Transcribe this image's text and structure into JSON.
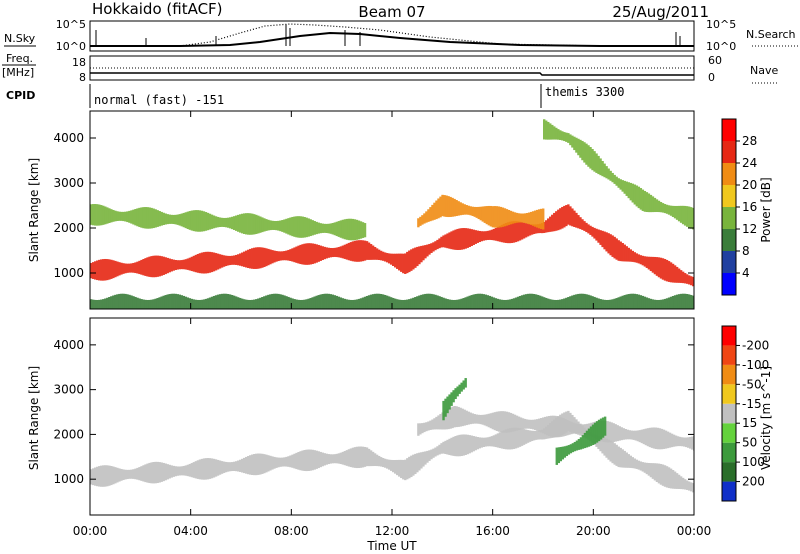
{
  "header": {
    "station": "Hokkaido (fitACF)",
    "beam": "Beam 07",
    "date": "25/Aug/2011"
  },
  "nsky_panel": {
    "left_label": "N.Sky",
    "right_label": "N.Search",
    "left_ticks": [
      "10^5",
      "10^0"
    ],
    "right_ticks": [
      "10^5",
      "10^0"
    ]
  },
  "freq_panel": {
    "left_label_1": "Freq.",
    "left_label_2": "[MHz]",
    "right_label": "Nave",
    "left_ticks": [
      "18",
      "8"
    ],
    "right_ticks": [
      "60",
      "0"
    ]
  },
  "cpid_panel": {
    "label": "CPID",
    "modes": [
      {
        "name": "normal (fast) -151",
        "start_hour": 0
      },
      {
        "name": "themis 3300",
        "start_hour": 18
      }
    ]
  },
  "chart_data": [
    {
      "type": "heatmap",
      "name": "power",
      "xlabel": "",
      "ylabel": "Slant Range [km]",
      "xlim": [
        0,
        24
      ],
      "ylim": [
        200,
        4600
      ],
      "y_ticks": [
        1000,
        2000,
        3000,
        4000
      ],
      "colorbar": {
        "label": "Power [dB]",
        "levels": [
          4,
          8,
          12,
          16,
          20,
          24,
          28
        ],
        "colors": [
          "#0000ff",
          "#2040a0",
          "#3a7d3a",
          "#78b43c",
          "#f0c81e",
          "#f08c14",
          "#e62814",
          "#ff0000"
        ]
      },
      "bands": [
        {
          "x": [
            0,
            4,
            8,
            11,
            12.5,
            14,
            16,
            18,
            19,
            21,
            24
          ],
          "y": [
            1050,
            1200,
            1400,
            1500,
            1200,
            1700,
            1850,
            2000,
            2300,
            1500,
            800
          ],
          "value": 26
        },
        {
          "x": [
            0,
            3,
            6,
            9,
            11
          ],
          "y": [
            2300,
            2200,
            2100,
            2000,
            1950
          ],
          "value": 14
        },
        {
          "x": [
            13,
            14,
            15,
            16,
            18
          ],
          "y": [
            2100,
            2500,
            2400,
            2250,
            2200
          ],
          "value": 20
        },
        {
          "x": [
            18,
            19,
            20,
            21,
            22,
            24
          ],
          "y": [
            4200,
            4000,
            3500,
            3000,
            2600,
            2200
          ],
          "value": 12
        },
        {
          "x": [
            0,
            24
          ],
          "y": [
            300,
            300
          ],
          "value": 10
        }
      ]
    },
    {
      "type": "heatmap",
      "name": "velocity",
      "xlabel": "Time UT",
      "ylabel": "Slant Range [km]",
      "xlim": [
        0,
        24
      ],
      "ylim": [
        200,
        4600
      ],
      "y_ticks": [
        1000,
        2000,
        3000,
        4000
      ],
      "x_tick_labels": [
        "00:00",
        "04:00",
        "08:00",
        "12:00",
        "16:00",
        "20:00",
        "00:00"
      ],
      "colorbar": {
        "label": "Velocity [m s^-1]",
        "levels": [
          200,
          100,
          50,
          15,
          -15,
          -50,
          -100,
          -200
        ],
        "colors": [
          "#1030c8",
          "#2a6e2a",
          "#3c9a3c",
          "#64d23c",
          "#c0c0c0",
          "#f0c81e",
          "#f08c14",
          "#f04614",
          "#ff0000"
        ]
      },
      "bands": [
        {
          "x": [
            0,
            4,
            8,
            11,
            12.5,
            14,
            16,
            18,
            19,
            21,
            24
          ],
          "y": [
            1050,
            1200,
            1400,
            1500,
            1200,
            1700,
            1850,
            2000,
            2300,
            1500,
            800
          ],
          "value": 0
        },
        {
          "x": [
            13,
            14.5,
            16,
            18,
            20,
            24
          ],
          "y": [
            2100,
            2400,
            2300,
            2200,
            2100,
            1800
          ],
          "value": 0
        },
        {
          "x": [
            18.5,
            19.5,
            20.5
          ],
          "y": [
            1500,
            1800,
            2200
          ],
          "value": 60
        },
        {
          "x": [
            14,
            14.5,
            15
          ],
          "y": [
            2500,
            2900,
            3200
          ],
          "value": 60
        }
      ]
    }
  ]
}
